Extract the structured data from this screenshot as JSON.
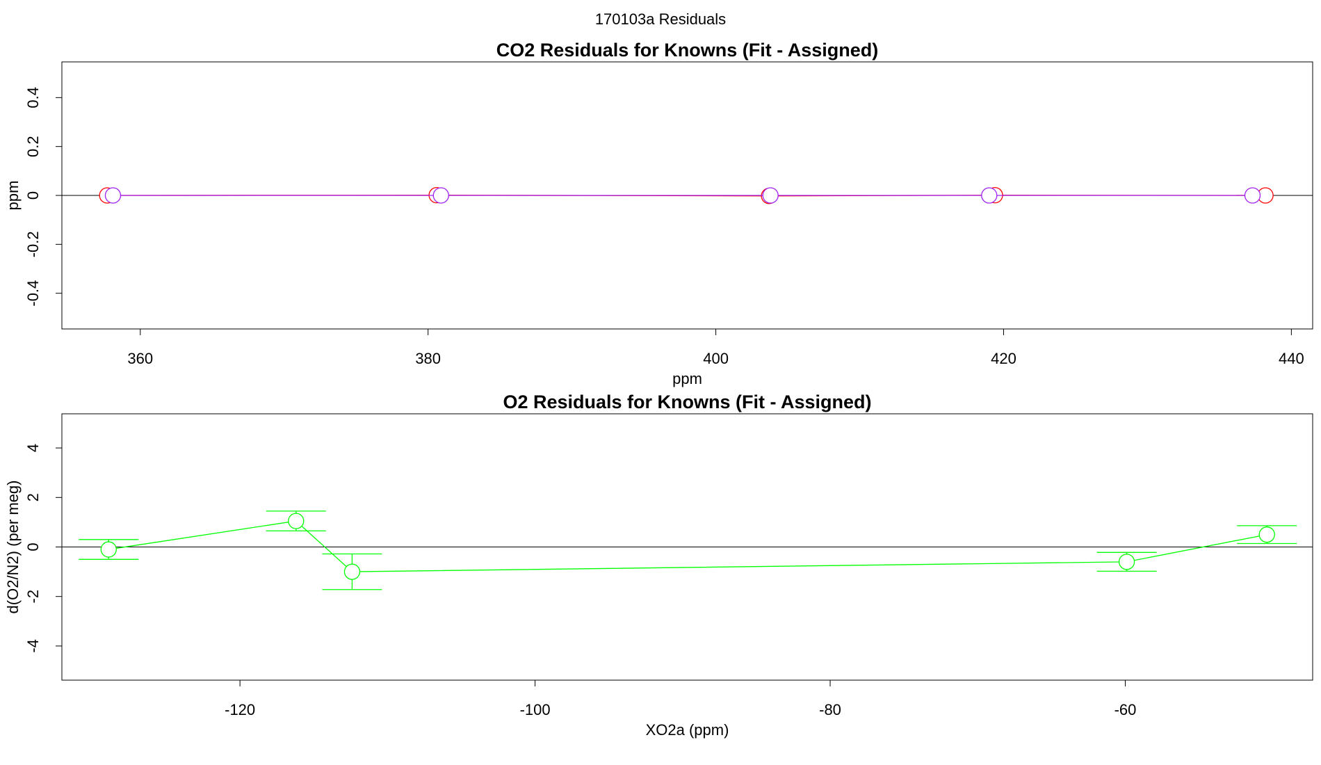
{
  "page_title": "170103a  Residuals",
  "chart_data": [
    {
      "type": "scatter",
      "title": "CO2 Residuals for Knowns (Fit - Assigned)",
      "xlabel": "ppm",
      "ylabel": "ppm",
      "xlim": [
        354.55,
        441.48
      ],
      "xticks": [
        360,
        380,
        400,
        420,
        440
      ],
      "ylim": [
        -0.546,
        0.546
      ],
      "yticks": [
        -0.4,
        -0.2,
        0.0,
        0.2,
        0.4
      ],
      "hline": 0,
      "series": [
        {
          "color": "#ff0000",
          "x": [
            357.7,
            380.6,
            403.7,
            419.4,
            438.2
          ],
          "values": [
            0,
            0.001,
            -0.002,
            0.001,
            0
          ]
        },
        {
          "color": "#a020f0",
          "x": [
            358.1,
            380.9,
            403.8,
            419.0,
            437.3
          ],
          "values": [
            0,
            0,
            0,
            0,
            0
          ]
        }
      ]
    },
    {
      "type": "errorbar",
      "title": "O2 Residuals for Knowns (Fit - Assigned)",
      "xlabel": "XO2a (ppm)",
      "ylabel": "d(O2/N2) (per meg)",
      "xlim": [
        -132.07,
        -47.3
      ],
      "xticks": [
        -120,
        -100,
        -80,
        -60
      ],
      "ylim": [
        -5.38,
        5.38
      ],
      "yticks": [
        -4,
        -2,
        0,
        2,
        4
      ],
      "hline": 0,
      "series": [
        {
          "color": "#00ff00",
          "x": [
            -128.9,
            -116.2,
            -112.4,
            -59.9,
            -50.4
          ],
          "values": [
            -0.1,
            1.05,
            -1.0,
            -0.6,
            0.5
          ],
          "errors": [
            0.4,
            0.4,
            0.72,
            0.38,
            0.36
          ]
        }
      ]
    }
  ]
}
